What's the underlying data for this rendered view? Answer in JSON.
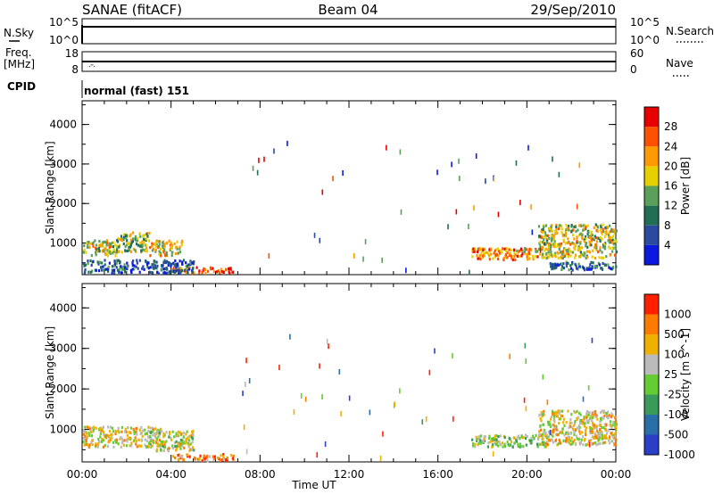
{
  "header": {
    "station": "SANAE (fitACF)",
    "beam": "Beam 04",
    "date": "29/Sep/2010"
  },
  "top_panels": {
    "nsky_label": "N.Sky",
    "nsky_ticks": [
      "10^5",
      "10^0"
    ],
    "nsearch_label": "N.Search",
    "nsearch_ticks": [
      "10^5",
      "10^0"
    ],
    "freq_label_1": "Freq.",
    "freq_label_2": "[MHz]",
    "freq_ticks": [
      "18",
      "8"
    ],
    "nave_label": "Nave",
    "nave_ticks": [
      "60",
      "0"
    ],
    "cpid_label": "CPID",
    "cpid_value": "normal (fast) 151"
  },
  "time_axis": {
    "ticks": [
      "00:00",
      "04:00",
      "08:00",
      "12:00",
      "16:00",
      "20:00",
      "00:00"
    ],
    "label": "Time UT"
  },
  "chart_data": [
    {
      "type": "heatmap",
      "name": "power",
      "ylabel": "Slant Range [km]",
      "yticks": [
        "4000",
        "3000",
        "2000",
        "1000"
      ],
      "ylim": [
        200,
        4600
      ],
      "xlim_hours": [
        0,
        24
      ],
      "colorbar_label": "Power [dB]",
      "colorbar_ticks": [
        "28",
        "24",
        "20",
        "16",
        "12",
        "8",
        "4"
      ],
      "colors": [
        "#0b19e0",
        "#2a4aa0",
        "#1f6e55",
        "#5aa05a",
        "#e6d000",
        "#ff9a00",
        "#ff5000",
        "#e80000"
      ],
      "scatter_regions": [
        {
          "t": [
            0.0,
            1.5
          ],
          "r": [
            700,
            1100
          ],
          "level": 0.55
        },
        {
          "t": [
            1.5,
            3.0
          ],
          "r": [
            800,
            1300
          ],
          "level": 0.45
        },
        {
          "t": [
            3.0,
            4.5
          ],
          "r": [
            700,
            1100
          ],
          "level": 0.6
        },
        {
          "t": [
            4.0,
            6.8
          ],
          "r": [
            260,
            420
          ],
          "level": 0.85
        },
        {
          "t": [
            0.0,
            5.0
          ],
          "r": [
            260,
            600
          ],
          "level": 0.2
        },
        {
          "t": [
            17.5,
            20.5
          ],
          "r": [
            600,
            900
          ],
          "level": 0.7
        },
        {
          "t": [
            20.5,
            24.0
          ],
          "r": [
            650,
            1500
          ],
          "level": 0.55
        },
        {
          "t": [
            21.0,
            24.0
          ],
          "r": [
            350,
            550
          ],
          "level": 0.25
        }
      ]
    },
    {
      "type": "heatmap",
      "name": "velocity",
      "ylabel": "Slant Range [km]",
      "yticks": [
        "4000",
        "3000",
        "2000",
        "1000"
      ],
      "ylim": [
        200,
        4600
      ],
      "xlim_hours": [
        0,
        24
      ],
      "colorbar_label": "Velocity [m s^-1]",
      "colorbar_ticks": [
        "1000",
        "500",
        "100",
        "25",
        "-25",
        "-100",
        "-500",
        "-1000"
      ],
      "colors": [
        "#2a3ec8",
        "#2a6ea8",
        "#3a9a5a",
        "#66cc33",
        "#bbbbbb",
        "#f0b000",
        "#ff7a00",
        "#ff2000"
      ],
      "scatter_regions": [
        {
          "t": [
            0.0,
            3.5
          ],
          "r": [
            600,
            1100
          ],
          "level": 0.62
        },
        {
          "t": [
            3.0,
            5.0
          ],
          "r": [
            500,
            1000
          ],
          "level": 0.55
        },
        {
          "t": [
            4.0,
            6.8
          ],
          "r": [
            260,
            420
          ],
          "level": 0.82
        },
        {
          "t": [
            17.5,
            21.0
          ],
          "r": [
            600,
            900
          ],
          "level": 0.5
        },
        {
          "t": [
            20.5,
            24.0
          ],
          "r": [
            650,
            1500
          ],
          "level": 0.62
        }
      ]
    }
  ]
}
